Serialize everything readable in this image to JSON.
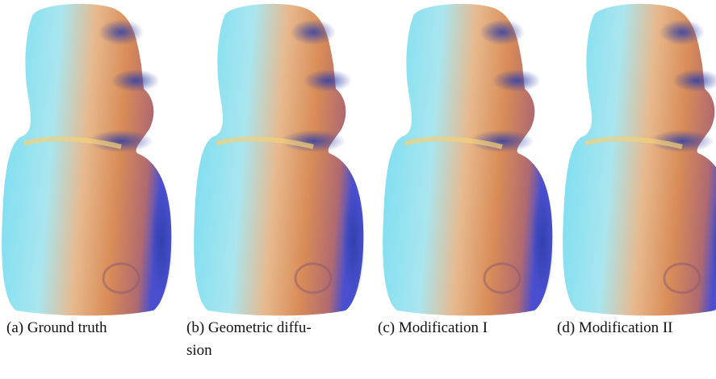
{
  "figure": {
    "panels": [
      {
        "label": "(a)",
        "lines": [
          "Ground truth"
        ]
      },
      {
        "label": "(b)",
        "lines": [
          "Geometric diffu-",
          "sion"
        ]
      },
      {
        "label": "(c)",
        "lines": [
          "Modification I"
        ]
      },
      {
        "label": "(d)",
        "lines": [
          "Modification II"
        ]
      }
    ]
  }
}
